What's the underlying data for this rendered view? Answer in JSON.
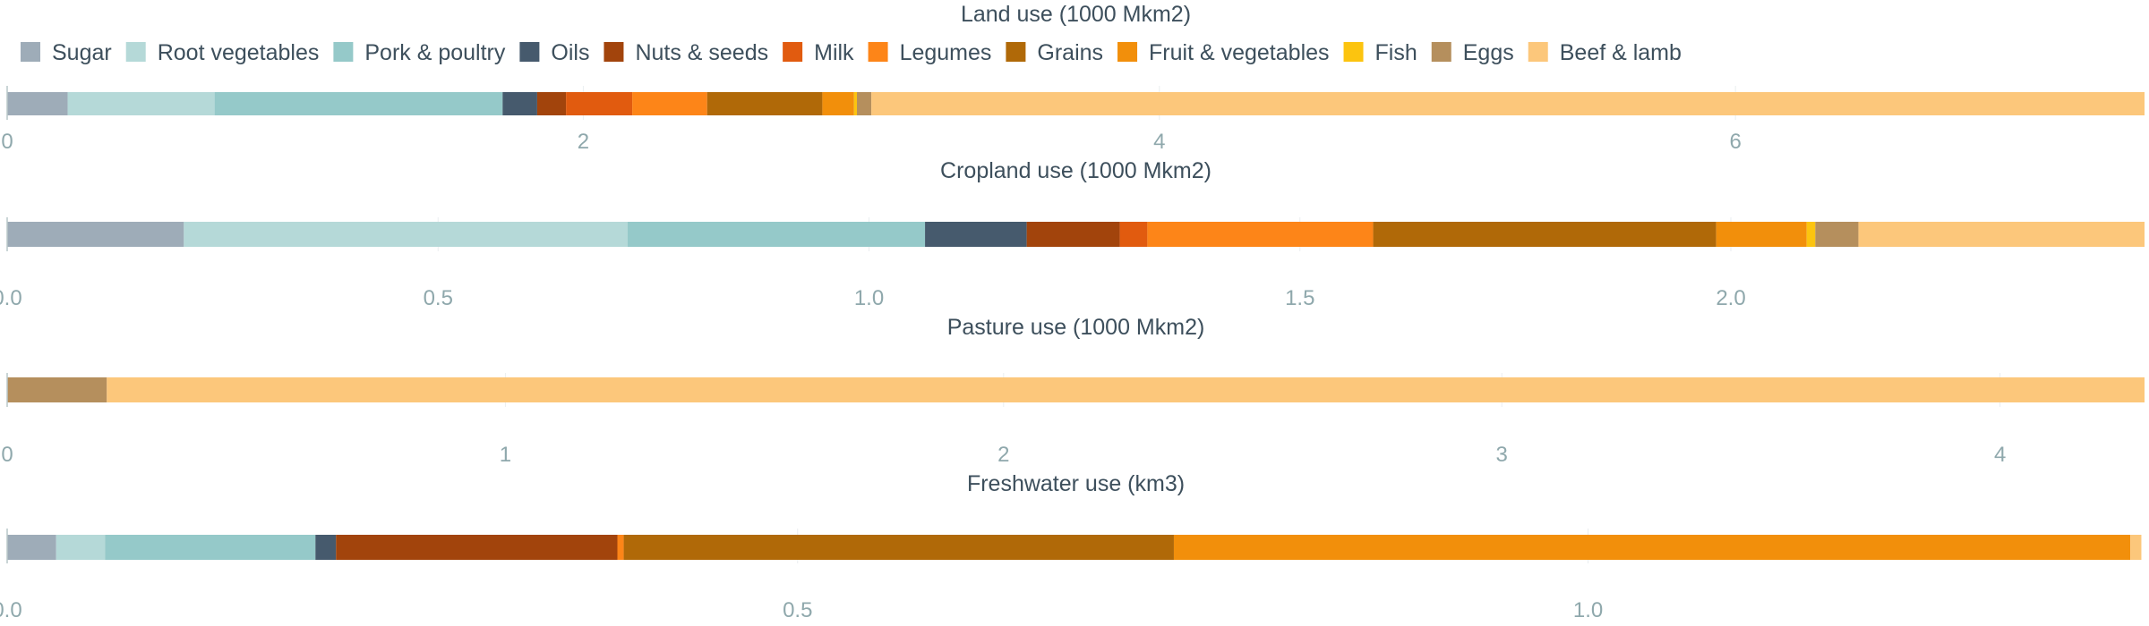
{
  "chart_data": {
    "type": "bar",
    "orientation": "horizontal",
    "stacked": true,
    "legend": {
      "placement": "top-left",
      "items": [
        {
          "name": "Sugar",
          "color": "#9eacb8"
        },
        {
          "name": "Root vegetables",
          "color": "#b5d9d8"
        },
        {
          "name": "Pork & poultry",
          "color": "#95c9c9"
        },
        {
          "name": "Oils",
          "color": "#465a6d"
        },
        {
          "name": "Nuts & seeds",
          "color": "#a2440c"
        },
        {
          "name": "Milk",
          "color": "#e15b0f"
        },
        {
          "name": "Legumes",
          "color": "#fd8518"
        },
        {
          "name": "Grains",
          "color": "#b06908"
        },
        {
          "name": "Fruit & vegetables",
          "color": "#f28f0b"
        },
        {
          "name": "Fish",
          "color": "#fcc40f"
        },
        {
          "name": "Eggs",
          "color": "#b58f5d"
        },
        {
          "name": "Beef & lamb",
          "color": "#fcc77b"
        }
      ]
    },
    "panels": [
      {
        "title": "Land use (1000 Mkm2)",
        "xlim": [
          0,
          7.42
        ],
        "ticks": [
          {
            "value": 0,
            "label": "0"
          },
          {
            "value": 2,
            "label": "2"
          },
          {
            "value": 4,
            "label": "4"
          },
          {
            "value": 6,
            "label": "6"
          }
        ],
        "values": [
          0.21,
          0.51,
          1.0,
          0.12,
          0.1,
          0.23,
          0.26,
          0.4,
          0.11,
          0.01,
          0.05,
          4.42
        ]
      },
      {
        "title": "Cropland use (1000 Mkm2)",
        "xlim": [
          0,
          2.48
        ],
        "ticks": [
          {
            "value": 0,
            "label": "0.0"
          },
          {
            "value": 0.5,
            "label": "0.5"
          },
          {
            "value": 1.0,
            "label": "1.0"
          },
          {
            "value": 1.5,
            "label": "1.5"
          },
          {
            "value": 2.0,
            "label": "2.0"
          }
        ],
        "values": [
          0.205,
          0.515,
          0.345,
          0.118,
          0.108,
          0.032,
          0.262,
          0.398,
          0.105,
          0.01,
          0.05,
          0.332
        ]
      },
      {
        "title": "Pasture use (1000 Mkm2)",
        "xlim": [
          0,
          4.29
        ],
        "ticks": [
          {
            "value": 0,
            "label": "0"
          },
          {
            "value": 1,
            "label": "1"
          },
          {
            "value": 2,
            "label": "2"
          },
          {
            "value": 3,
            "label": "3"
          },
          {
            "value": 4,
            "label": "4"
          }
        ],
        "values": [
          0,
          0,
          0,
          0,
          0,
          0,
          0,
          0,
          0,
          0,
          0.2,
          4.09
        ]
      },
      {
        "title": "Freshwater use (km3)",
        "xlim": [
          0,
          1.352
        ],
        "ticks": [
          {
            "value": 0,
            "label": "0.0"
          },
          {
            "value": 0.5,
            "label": "0.5"
          },
          {
            "value": 1.0,
            "label": "1.0"
          }
        ],
        "values": [
          0.031,
          0.031,
          0.133,
          0.013,
          0.178,
          0.0,
          0.004,
          0.348,
          0.605,
          0.0,
          0.0,
          0.007
        ]
      }
    ]
  }
}
